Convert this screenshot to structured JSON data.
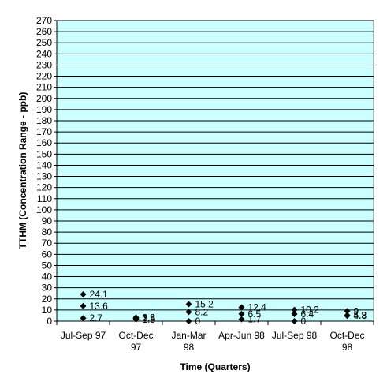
{
  "chart_data": {
    "type": "scatter",
    "title": "",
    "xlabel": "Time (Quarters)",
    "ylabel": "TTHM (Concentration Range - ppb)",
    "ylim": [
      0,
      270
    ],
    "ytick_step": 10,
    "grid": true,
    "legend": "none",
    "colors": {
      "plot_background": "#ccffff",
      "gridline": "#000000",
      "marker": "#000000"
    },
    "categories": [
      {
        "label_lines": [
          "Jul-Sep 97"
        ]
      },
      {
        "label_lines": [
          "Oct-Dec",
          "97"
        ]
      },
      {
        "label_lines": [
          "Jan-Mar",
          "98"
        ]
      },
      {
        "label_lines": [
          "Apr-Jun 98"
        ]
      },
      {
        "label_lines": [
          "Jul-Sep 98"
        ]
      },
      {
        "label_lines": [
          "Oct-Dec",
          "98"
        ]
      }
    ],
    "points": [
      {
        "category": 0,
        "y": 24.1,
        "label": "24.1"
      },
      {
        "category": 0,
        "y": 13.6,
        "label": "13.6"
      },
      {
        "category": 0,
        "y": 2.7,
        "label": "2.7"
      },
      {
        "category": 1,
        "y": 3.3,
        "label": "3.3"
      },
      {
        "category": 1,
        "y": 2.4,
        "label": "2.4"
      },
      {
        "category": 1,
        "y": 1.5,
        "label": "1.5"
      },
      {
        "category": 2,
        "y": 15.2,
        "label": "15.2"
      },
      {
        "category": 2,
        "y": 8.2,
        "label": "8.2"
      },
      {
        "category": 2,
        "y": 0,
        "label": "0"
      },
      {
        "category": 3,
        "y": 12.4,
        "label": "12.4"
      },
      {
        "category": 3,
        "y": 6.5,
        "label": "6.5"
      },
      {
        "category": 3,
        "y": 1.7,
        "label": "1.7"
      },
      {
        "category": 4,
        "y": 10.2,
        "label": "10.2"
      },
      {
        "category": 4,
        "y": 6.4,
        "label": "6.4"
      },
      {
        "category": 4,
        "y": 0,
        "label": "0"
      },
      {
        "category": 5,
        "y": 9,
        "label": "9"
      },
      {
        "category": 5,
        "y": 5.3,
        "label": "5.3"
      },
      {
        "category": 5,
        "y": 4.8,
        "label": "4.8"
      }
    ]
  }
}
